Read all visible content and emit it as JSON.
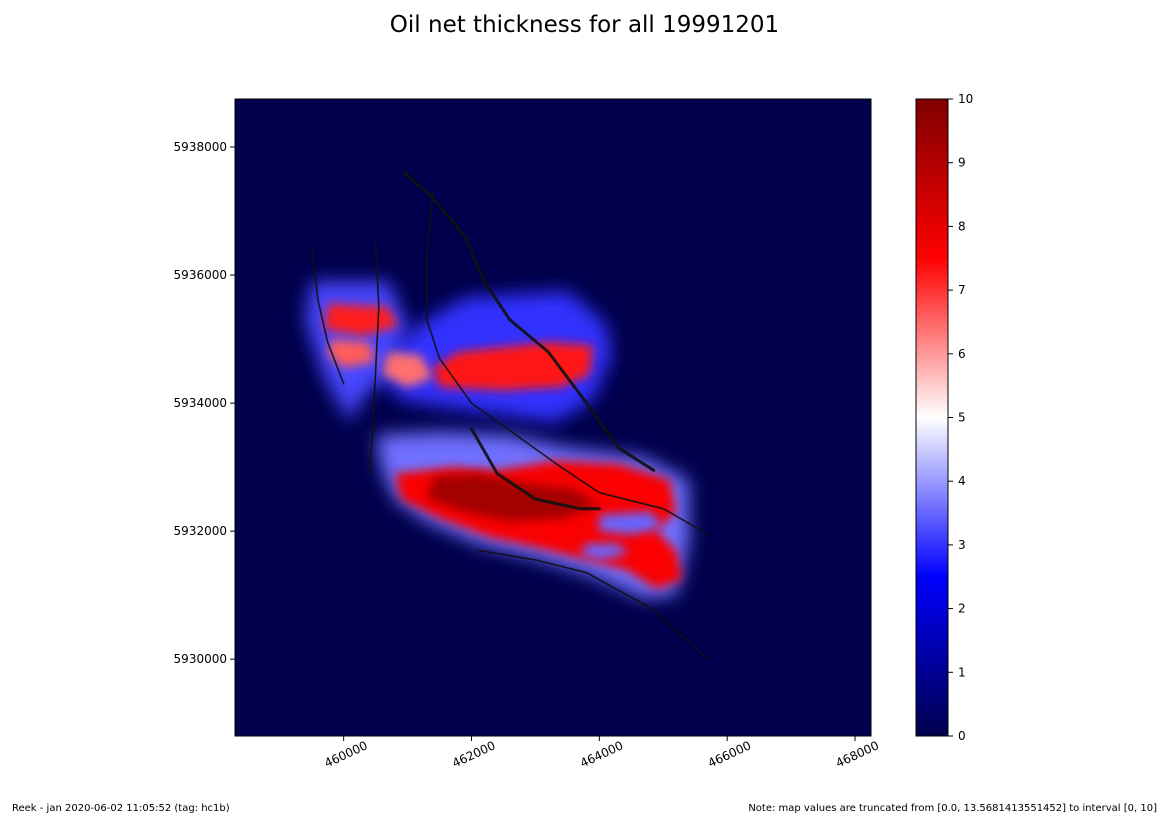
{
  "title": "Oil net thickness for all 19991201",
  "footer_left": "Reek -  jan 2020-06-02 11:05:52 (tag: hc1b)",
  "footer_right": "Note: map values are truncated from [0.0, 13.5681413551452] to interval [0, 10]",
  "chart_data": {
    "type": "heatmap",
    "title": "Oil net thickness for all 19991201",
    "xlabel": "",
    "ylabel": "",
    "xlim": [
      458300,
      468250
    ],
    "ylim": [
      5928800,
      5938750
    ],
    "x_ticks": [
      460000,
      462000,
      464000,
      466000,
      468000
    ],
    "x_tick_labels": [
      "460000",
      "462000",
      "464000",
      "466000",
      "468000"
    ],
    "y_ticks": [
      5930000,
      5932000,
      5934000,
      5936000,
      5938000
    ],
    "y_tick_labels": [
      "5930000",
      "5932000",
      "5934000",
      "5936000",
      "5938000"
    ],
    "colorscale": "seismic",
    "colorscale_colors": [
      "#00004c",
      "#0000ff",
      "#ffffff",
      "#ff0000",
      "#7f0000"
    ],
    "colorbar": {
      "vmin": 0,
      "vmax": 10,
      "ticks": [
        0,
        1,
        2,
        3,
        4,
        5,
        6,
        7,
        8,
        9,
        10
      ],
      "tick_labels": [
        "0",
        "1",
        "2",
        "3",
        "4",
        "5",
        "6",
        "7",
        "8",
        "9",
        "10"
      ]
    },
    "background_value": 0,
    "value_regions": [
      {
        "value": 3.2,
        "polygon": [
          [
            459500,
            5935900
          ],
          [
            460700,
            5935900
          ],
          [
            461000,
            5935200
          ],
          [
            460800,
            5934500
          ],
          [
            460300,
            5934100
          ],
          [
            460100,
            5933700
          ],
          [
            459700,
            5934400
          ],
          [
            459400,
            5935300
          ]
        ]
      },
      {
        "value": 3.0,
        "polygon": [
          [
            461900,
            5935650
          ],
          [
            463500,
            5935750
          ],
          [
            464100,
            5935250
          ],
          [
            464200,
            5934750
          ],
          [
            463900,
            5934050
          ],
          [
            463300,
            5933700
          ],
          [
            462600,
            5933800
          ],
          [
            461500,
            5933950
          ],
          [
            460900,
            5934050
          ],
          [
            460600,
            5934400
          ],
          [
            460800,
            5934900
          ],
          [
            461300,
            5935300
          ]
        ]
      },
      {
        "value": 3.6,
        "polygon": [
          [
            460500,
            5933500
          ],
          [
            461500,
            5933550
          ],
          [
            462600,
            5933500
          ],
          [
            463500,
            5933300
          ],
          [
            464700,
            5933150
          ],
          [
            465400,
            5932800
          ],
          [
            465400,
            5931800
          ],
          [
            465200,
            5931000
          ],
          [
            464700,
            5930950
          ],
          [
            463900,
            5931300
          ],
          [
            463100,
            5931550
          ],
          [
            462100,
            5931800
          ],
          [
            461300,
            5932150
          ],
          [
            460800,
            5932500
          ],
          [
            460600,
            5932950
          ]
        ]
      },
      {
        "value": 7.2,
        "polygon": [
          [
            459750,
            5935550
          ],
          [
            460700,
            5935500
          ],
          [
            460850,
            5935200
          ],
          [
            460300,
            5935050
          ],
          [
            459700,
            5935150
          ]
        ]
      },
      {
        "value": 6.6,
        "polygon": [
          [
            459800,
            5935000
          ],
          [
            460400,
            5934950
          ],
          [
            460500,
            5934650
          ],
          [
            460000,
            5934550
          ],
          [
            459750,
            5934750
          ]
        ]
      },
      {
        "value": 6.4,
        "polygon": [
          [
            460700,
            5934800
          ],
          [
            461200,
            5934750
          ],
          [
            461400,
            5934400
          ],
          [
            461000,
            5934250
          ],
          [
            460600,
            5934450
          ]
        ]
      },
      {
        "value": 7.3,
        "polygon": [
          [
            461800,
            5934800
          ],
          [
            463200,
            5934950
          ],
          [
            463900,
            5934900
          ],
          [
            463850,
            5934450
          ],
          [
            463400,
            5934250
          ],
          [
            462500,
            5934200
          ],
          [
            461500,
            5934250
          ],
          [
            461400,
            5934550
          ]
        ]
      },
      {
        "value": 7.6,
        "polygon": [
          [
            460800,
            5932900
          ],
          [
            461700,
            5933000
          ],
          [
            462400,
            5932950
          ],
          [
            463300,
            5933100
          ],
          [
            464300,
            5933050
          ],
          [
            465100,
            5932800
          ],
          [
            465200,
            5932300
          ],
          [
            464900,
            5932000
          ],
          [
            465200,
            5931700
          ],
          [
            465300,
            5931250
          ],
          [
            464900,
            5931100
          ],
          [
            464400,
            5931400
          ],
          [
            463600,
            5931600
          ],
          [
            463000,
            5931750
          ],
          [
            462300,
            5931900
          ],
          [
            461500,
            5932200
          ],
          [
            460900,
            5932500
          ]
        ]
      },
      {
        "value": 9.3,
        "polygon": [
          [
            461400,
            5932850
          ],
          [
            462100,
            5932900
          ],
          [
            462800,
            5932750
          ],
          [
            463600,
            5932650
          ],
          [
            464000,
            5932400
          ],
          [
            463400,
            5932200
          ],
          [
            462600,
            5932150
          ],
          [
            461900,
            5932300
          ],
          [
            461300,
            5932500
          ]
        ]
      },
      {
        "value": 3.5,
        "polygon": [
          [
            464000,
            5932250
          ],
          [
            464800,
            5932300
          ],
          [
            465000,
            5932050
          ],
          [
            464500,
            5931950
          ],
          [
            464000,
            5932000
          ]
        ]
      },
      {
        "value": 3.5,
        "polygon": [
          [
            463800,
            5931800
          ],
          [
            464300,
            5931800
          ],
          [
            464450,
            5931650
          ],
          [
            464000,
            5931550
          ],
          [
            463700,
            5931650
          ]
        ]
      }
    ],
    "fault_lines": [
      [
        [
          459500,
          5936450
        ],
        [
          459600,
          5935600
        ],
        [
          459750,
          5934950
        ],
        [
          460000,
          5934300
        ]
      ],
      [
        [
          460500,
          5936500
        ],
        [
          460550,
          5935500
        ],
        [
          460500,
          5934500
        ],
        [
          460450,
          5933500
        ],
        [
          460400,
          5932900
        ]
      ],
      [
        [
          460950,
          5937600
        ],
        [
          461400,
          5937200
        ],
        [
          461900,
          5936600
        ],
        [
          462200,
          5935900
        ],
        [
          462600,
          5935300
        ],
        [
          463200,
          5934800
        ],
        [
          463800,
          5934000
        ],
        [
          464300,
          5933300
        ],
        [
          464850,
          5932950
        ]
      ],
      [
        [
          461400,
          5937300
        ],
        [
          461300,
          5936300
        ],
        [
          461300,
          5935300
        ],
        [
          461500,
          5934700
        ],
        [
          462000,
          5934000
        ],
        [
          462700,
          5933500
        ],
        [
          463400,
          5933000
        ],
        [
          464000,
          5932600
        ],
        [
          465000,
          5932350
        ],
        [
          465700,
          5931950
        ]
      ],
      [
        [
          462000,
          5933600
        ],
        [
          462400,
          5932900
        ],
        [
          463000,
          5932500
        ],
        [
          463700,
          5932350
        ],
        [
          464000,
          5932350
        ]
      ],
      [
        [
          462100,
          5931700
        ],
        [
          463000,
          5931550
        ],
        [
          463800,
          5931350
        ],
        [
          464800,
          5930800
        ],
        [
          465700,
          5930000
        ]
      ]
    ]
  }
}
